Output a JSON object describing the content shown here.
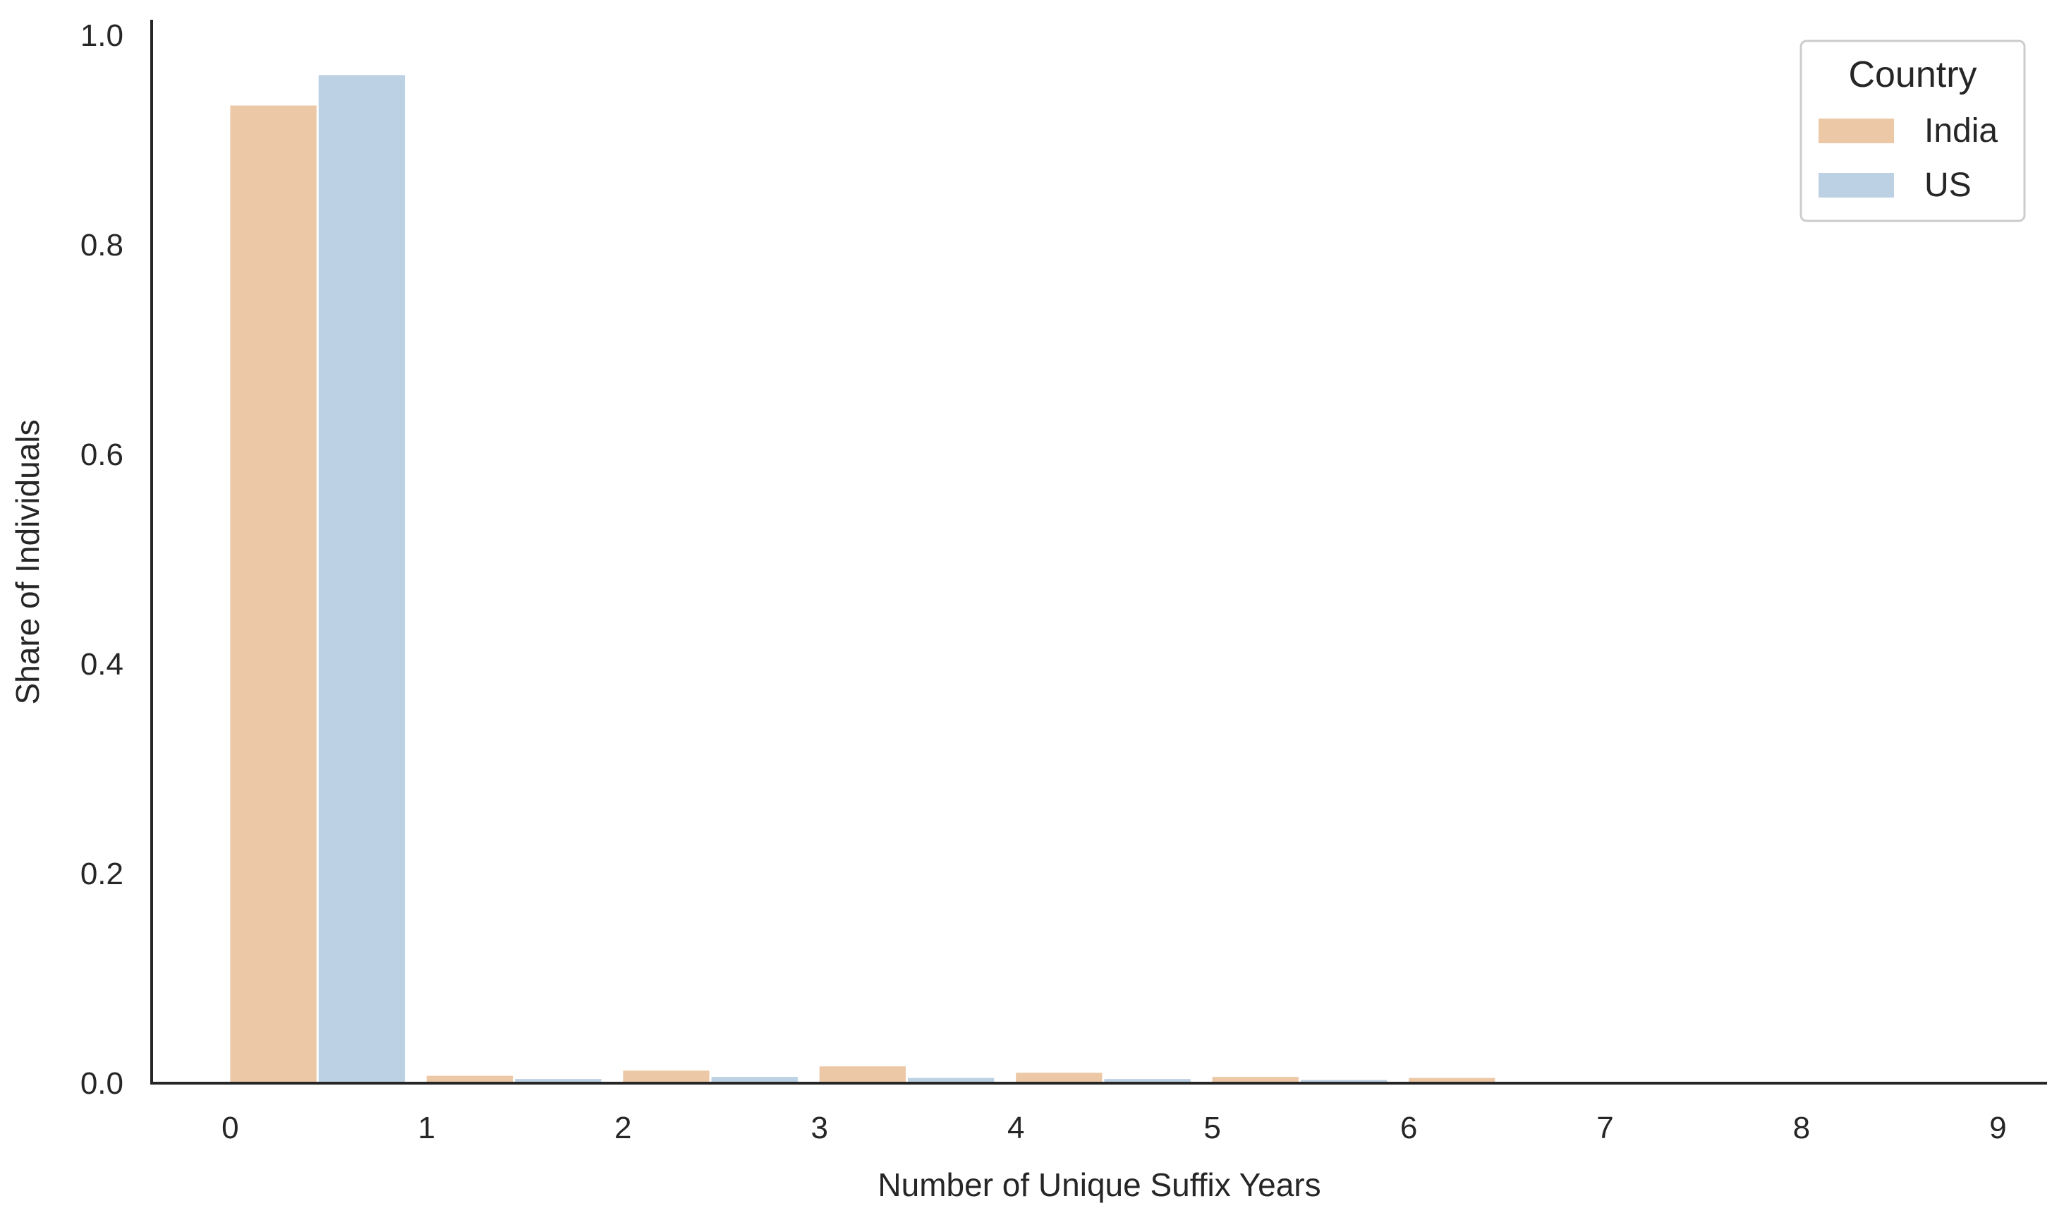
{
  "chart_data": {
    "type": "bar",
    "xlabel": "Number of Unique Suffix Years",
    "ylabel": "Share of Individuals",
    "ylim": [
      0,
      1.0
    ],
    "xlim": [
      -0.4,
      9.25
    ],
    "y_ticks": [
      "0.0",
      "0.2",
      "0.4",
      "0.6",
      "0.8",
      "1.0"
    ],
    "x_ticks": [
      "0",
      "1",
      "2",
      "3",
      "4",
      "5",
      "6",
      "7",
      "8",
      "9"
    ],
    "bin_width": 0.9,
    "legend": {
      "title": "Country",
      "position": "top-right"
    },
    "series": [
      {
        "name": "India",
        "color": "#e9be96",
        "bin_starts": [
          0,
          1,
          2,
          3,
          4,
          5,
          6,
          7,
          8
        ],
        "values": [
          0.933,
          0.007,
          0.012,
          0.016,
          0.01,
          0.006,
          0.005,
          0.001,
          0.0005
        ]
      },
      {
        "name": "US",
        "color": "#b2c9df",
        "bin_starts": [
          0.45,
          1.45,
          2.45,
          3.45,
          4.45,
          5.45,
          6.45,
          7.45,
          8.45
        ],
        "values": [
          0.962,
          0.004,
          0.006,
          0.005,
          0.004,
          0.003,
          0.001,
          0.0005,
          0.0003
        ]
      }
    ],
    "grid": false
  }
}
